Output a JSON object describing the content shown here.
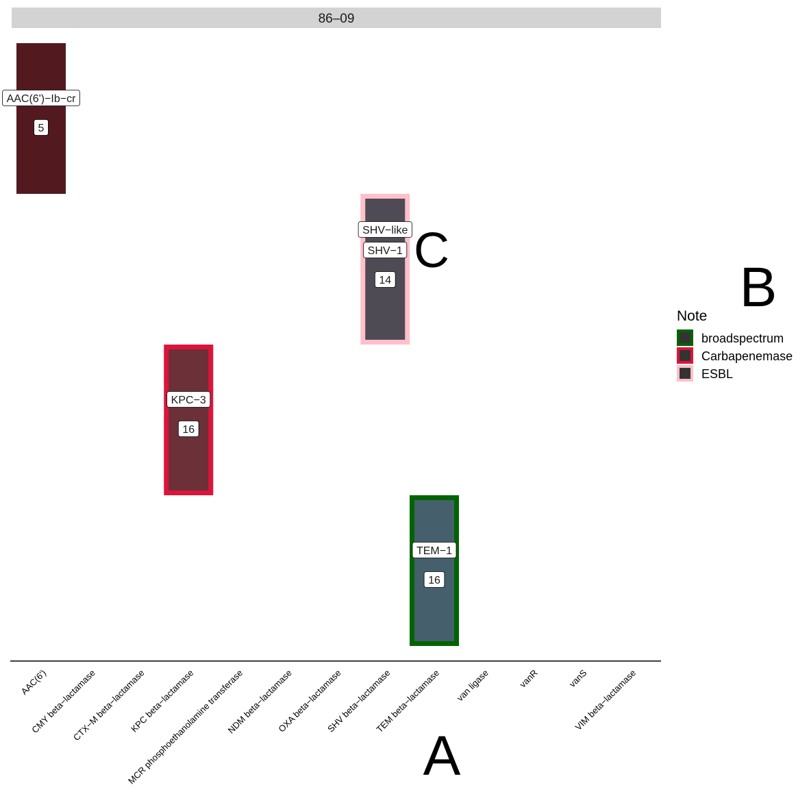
{
  "chart_data": {
    "type": "tile",
    "facet_title": "86–09",
    "x_categories": [
      "AAC(6')",
      "CMY beta−lactamase",
      "CTX−M beta−lactamase",
      "KPC beta−lactamase",
      "MCR phosphoethanolamine transferase",
      "NDM beta−lactamase",
      "OXA beta−lactamase",
      "SHV beta−lactamase",
      "TEM beta−lactamase",
      "van ligase",
      "vanR",
      "vanS",
      "VIM beta−lactamase"
    ],
    "tiles": [
      {
        "category": "AAC(6')",
        "row": 1,
        "labels": [
          "AAC(6')−Ib−cr"
        ],
        "count": "5",
        "fill": "#521a1e",
        "note": null
      },
      {
        "category": "SHV beta−lactamase",
        "row": 2,
        "labels": [
          "SHV−like",
          "SHV−1"
        ],
        "count": "14",
        "fill": "#4f4b55",
        "note": "ESBL"
      },
      {
        "category": "KPC beta−lactamase",
        "row": 3,
        "labels": [
          "KPC−3"
        ],
        "count": "16",
        "fill": "#6b3038",
        "note": "Carbapenemase"
      },
      {
        "category": "TEM beta−lactamase",
        "row": 4,
        "labels": [
          "TEM−1"
        ],
        "count": "16",
        "fill": "#455f6c",
        "note": "broadspectrum"
      }
    ],
    "legend": {
      "title": "Note",
      "position": "right",
      "items": [
        {
          "label": "broadspectrum",
          "color": "#006400"
        },
        {
          "label": "Carbapenemase",
          "color": "#dc143c"
        },
        {
          "label": "ESBL",
          "color": "#ffc0cb"
        }
      ]
    },
    "annotations": [
      "A",
      "B",
      "C"
    ]
  }
}
